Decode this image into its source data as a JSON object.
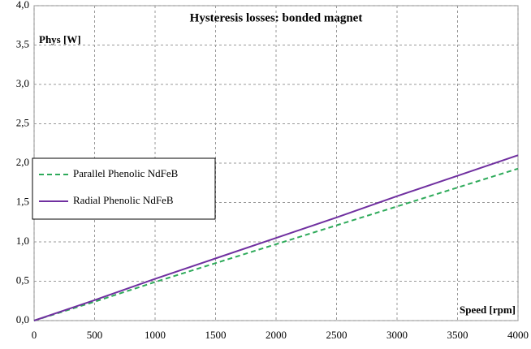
{
  "chart_data": {
    "type": "line",
    "title": "Hysteresis losses: bonded magnet",
    "y_label": "Phys [W]",
    "x_label": "Speed [rpm]",
    "x": [
      0,
      500,
      1000,
      1500,
      2000,
      2500,
      3000,
      3500,
      4000
    ],
    "series": [
      {
        "name": "Parallel Phenolic NdFeB",
        "color": "#2eaa5a",
        "style": "dashed",
        "values": [
          0,
          0.24,
          0.49,
          0.73,
          0.97,
          1.21,
          1.45,
          1.69,
          1.93
        ]
      },
      {
        "name": "Radial Phenolic NdFeB",
        "color": "#7030a0",
        "style": "solid",
        "values": [
          0,
          0.26,
          0.53,
          0.79,
          1.05,
          1.31,
          1.58,
          1.84,
          2.1
        ]
      }
    ],
    "xlim": [
      0,
      4000
    ],
    "xticks": [
      0,
      500,
      1000,
      1500,
      2000,
      2500,
      3000,
      3500,
      4000
    ],
    "ylim": [
      0,
      4
    ],
    "yticks": [
      {
        "value": 0,
        "label": "0,0"
      },
      {
        "value": 0.5,
        "label": "0,5"
      },
      {
        "value": 1,
        "label": "1,0"
      },
      {
        "value": 1.5,
        "label": "1,5"
      },
      {
        "value": 2,
        "label": "2,0"
      },
      {
        "value": 2.5,
        "label": "2,5"
      },
      {
        "value": 3,
        "label": "3,0"
      },
      {
        "value": 3.5,
        "label": "3,5"
      },
      {
        "value": 4,
        "label": "4,0"
      }
    ],
    "grid": true,
    "legend_position": "left"
  }
}
